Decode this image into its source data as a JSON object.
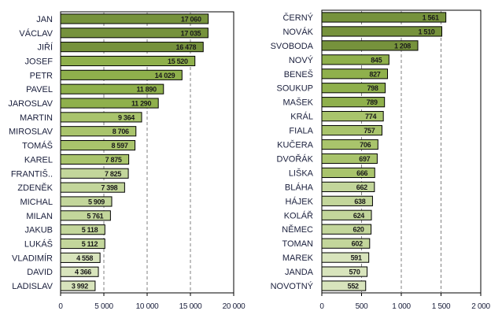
{
  "chart_data": [
    {
      "type": "bar",
      "orientation": "horizontal",
      "title": "",
      "xlabel": "",
      "ylabel": "",
      "xlim": [
        0,
        20000
      ],
      "xticks": [
        0,
        5000,
        10000,
        15000,
        20000
      ],
      "tick_labels": [
        "0",
        "5 000",
        "10 000",
        "15 000",
        "20 000"
      ],
      "grid": "vertical dashed",
      "categories": [
        "JAN",
        "VÁCLAV",
        "JIŘÍ",
        "JOSEF",
        "PETR",
        "PAVEL",
        "JAROSLAV",
        "MARTIN",
        "MIROSLAV",
        "TOMÁŠ",
        "KAREL",
        "FRANTIŠ..",
        "ZDENĚK",
        "MICHAL",
        "MILAN",
        "JAKUB",
        "LUKÁŠ",
        "VLADIMÍR",
        "DAVID",
        "LADISLAV"
      ],
      "values": [
        17060,
        17035,
        16478,
        15520,
        14029,
        11890,
        11290,
        9364,
        8706,
        8597,
        7875,
        7825,
        7398,
        5909,
        5761,
        5118,
        5112,
        4558,
        4366,
        3992
      ],
      "value_labels": [
        "17 060",
        "17 035",
        "16 478",
        "15 520",
        "14 029",
        "11 890",
        "11 290",
        "9 364",
        "8 706",
        "8 597",
        "7 875",
        "7 825",
        "7 398",
        "5 909",
        "5 761",
        "5 118",
        "5 112",
        "4 558",
        "4 366",
        "3 992"
      ],
      "color_groups": [
        0,
        0,
        0,
        1,
        1,
        1,
        1,
        2,
        2,
        2,
        2,
        3,
        3,
        3,
        3,
        3,
        3,
        4,
        4,
        4
      ]
    },
    {
      "type": "bar",
      "orientation": "horizontal",
      "title": "",
      "xlabel": "",
      "ylabel": "",
      "xlim": [
        0,
        2000
      ],
      "xticks": [
        0,
        500,
        1000,
        1500,
        2000
      ],
      "tick_labels": [
        "0",
        "500",
        "1 000",
        "1 500",
        "2 000"
      ],
      "grid": "vertical dashed",
      "categories": [
        "ČERNÝ",
        "NOVÁK",
        "SVOBODA",
        "NOVÝ",
        "BENEŠ",
        "SOUKUP",
        "MAŠEK",
        "KRÁL",
        "FIALA",
        "KUČERA",
        "DVOŘÁK",
        "LIŠKA",
        "BLÁHA",
        "HÁJEK",
        "KOLÁŘ",
        "NĚMEC",
        "TOMAN",
        "MAREK",
        "JANDA",
        "NOVOTNÝ"
      ],
      "values": [
        1561,
        1510,
        1208,
        845,
        827,
        798,
        789,
        774,
        757,
        706,
        697,
        666,
        662,
        638,
        624,
        620,
        602,
        591,
        570,
        552
      ],
      "value_labels": [
        "1 561",
        "1 510",
        "1 208",
        "845",
        "827",
        "798",
        "789",
        "774",
        "757",
        "706",
        "697",
        "666",
        "662",
        "638",
        "624",
        "620",
        "602",
        "591",
        "570",
        "552"
      ],
      "color_groups": [
        0,
        0,
        0,
        1,
        1,
        1,
        1,
        2,
        2,
        2,
        2,
        2,
        3,
        3,
        3,
        3,
        3,
        4,
        4,
        4
      ]
    }
  ],
  "palette": [
    "#76923c",
    "#8fb04c",
    "#a9c46c",
    "#c3d69b",
    "#d8e4bc"
  ]
}
